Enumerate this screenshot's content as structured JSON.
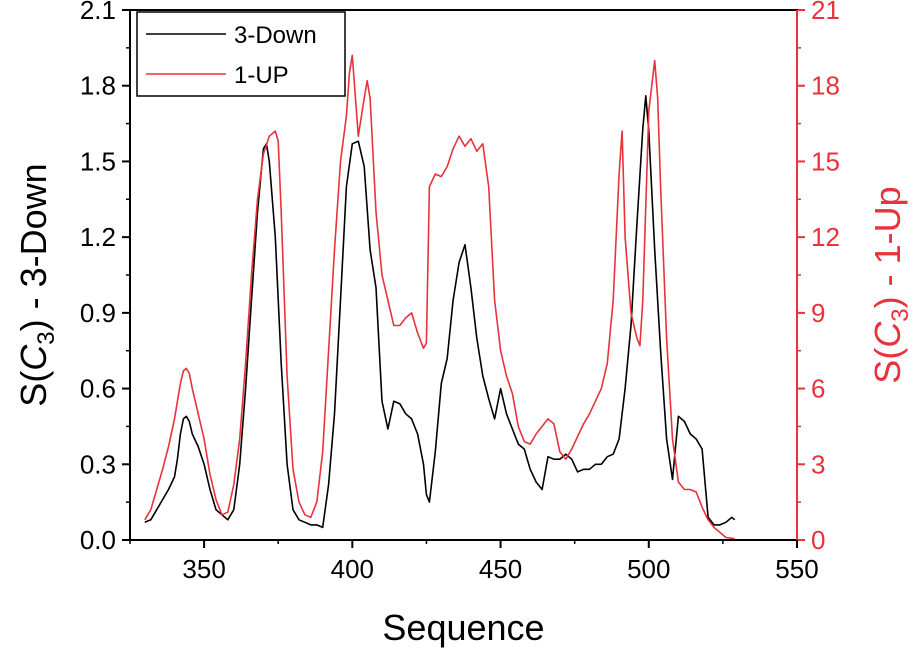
{
  "chart_data": {
    "type": "line",
    "xlabel": "Sequence",
    "ylabel_left_parts": [
      "S(",
      "C",
      "3",
      ") - 3-Down"
    ],
    "ylabel_right_parts": [
      "S(",
      "C",
      "3",
      ") - 1-Up"
    ],
    "xlim": [
      325,
      550
    ],
    "ylim_left": [
      0,
      2.1
    ],
    "ylim_right": [
      0,
      21
    ],
    "xticks": [
      350,
      400,
      450,
      500,
      550
    ],
    "yticks_left": [
      "0.0",
      "0.3",
      "0.6",
      "0.9",
      "1.2",
      "1.5",
      "1.8",
      "2.1"
    ],
    "yticks_right": [
      "0",
      "3",
      "6",
      "9",
      "12",
      "15",
      "18",
      "21"
    ],
    "legend_placement": "top-left",
    "colors": {
      "down": "#000000",
      "up": "#e8323c",
      "axis": "#000000",
      "right_axis": "#e8323c"
    },
    "series": [
      {
        "name": "3-Down",
        "axis": "left",
        "color": "#000000",
        "x": [
          330,
          332,
          334,
          336,
          338,
          340,
          341,
          342,
          343,
          344,
          345,
          346,
          348,
          350,
          352,
          354,
          356,
          358,
          360,
          362,
          364,
          366,
          368,
          370,
          371,
          372,
          374,
          376,
          378,
          380,
          382,
          384,
          386,
          388,
          390,
          392,
          394,
          396,
          398,
          400,
          402,
          404,
          406,
          408,
          410,
          412,
          414,
          416,
          418,
          420,
          422,
          424,
          425,
          426,
          428,
          430,
          432,
          434,
          436,
          438,
          440,
          442,
          444,
          446,
          448,
          450,
          452,
          454,
          456,
          458,
          460,
          462,
          464,
          466,
          468,
          470,
          472,
          474,
          476,
          478,
          480,
          482,
          484,
          486,
          488,
          490,
          492,
          494,
          496,
          498,
          499,
          500,
          502,
          504,
          506,
          508,
          510,
          512,
          514,
          516,
          518,
          520,
          522,
          524,
          526,
          528,
          529
        ],
        "y": [
          0.07,
          0.08,
          0.12,
          0.16,
          0.2,
          0.25,
          0.32,
          0.42,
          0.48,
          0.49,
          0.47,
          0.42,
          0.37,
          0.3,
          0.2,
          0.12,
          0.1,
          0.08,
          0.12,
          0.3,
          0.6,
          0.95,
          1.3,
          1.55,
          1.57,
          1.5,
          1.2,
          0.7,
          0.3,
          0.12,
          0.08,
          0.07,
          0.06,
          0.06,
          0.05,
          0.22,
          0.5,
          0.95,
          1.4,
          1.57,
          1.58,
          1.48,
          1.15,
          1.0,
          0.55,
          0.44,
          0.55,
          0.54,
          0.5,
          0.48,
          0.42,
          0.3,
          0.18,
          0.15,
          0.35,
          0.62,
          0.72,
          0.95,
          1.1,
          1.17,
          1.0,
          0.8,
          0.65,
          0.56,
          0.48,
          0.6,
          0.5,
          0.44,
          0.38,
          0.36,
          0.28,
          0.23,
          0.2,
          0.33,
          0.32,
          0.32,
          0.34,
          0.32,
          0.27,
          0.28,
          0.28,
          0.3,
          0.3,
          0.33,
          0.34,
          0.4,
          0.6,
          0.85,
          1.25,
          1.63,
          1.76,
          1.62,
          1.15,
          0.75,
          0.4,
          0.24,
          0.49,
          0.47,
          0.42,
          0.4,
          0.36,
          0.09,
          0.06,
          0.06,
          0.07,
          0.09,
          0.08
        ]
      },
      {
        "name": "1-UP",
        "axis": "right",
        "color": "#e8323c",
        "x": [
          330,
          332,
          334,
          336,
          338,
          340,
          342,
          343,
          344,
          345,
          346,
          348,
          350,
          352,
          354,
          356,
          358,
          360,
          362,
          364,
          366,
          368,
          370,
          372,
          374,
          375,
          376,
          378,
          380,
          382,
          384,
          386,
          388,
          390,
          392,
          394,
          396,
          398,
          399,
          400,
          402,
          404,
          405,
          406,
          408,
          410,
          412,
          414,
          416,
          418,
          420,
          422,
          424,
          425,
          426,
          428,
          430,
          432,
          434,
          436,
          438,
          440,
          442,
          444,
          446,
          448,
          450,
          452,
          454,
          456,
          458,
          460,
          462,
          464,
          466,
          468,
          470,
          472,
          474,
          476,
          478,
          480,
          482,
          484,
          486,
          488,
          490,
          491,
          492,
          494,
          496,
          497,
          498,
          500,
          502,
          503,
          504,
          506,
          508,
          510,
          512,
          514,
          516,
          518,
          520,
          522,
          524,
          526,
          529
        ],
        "y": [
          0.8,
          1.2,
          2.0,
          2.8,
          3.7,
          4.8,
          6.2,
          6.7,
          6.8,
          6.6,
          6.0,
          5.0,
          4.0,
          2.6,
          1.6,
          1.0,
          1.1,
          2.2,
          4.0,
          7.0,
          10.5,
          13.5,
          15.3,
          16.0,
          16.2,
          15.8,
          13.0,
          6.5,
          2.8,
          1.5,
          1.0,
          0.9,
          1.5,
          3.5,
          7.5,
          11.5,
          15.0,
          16.8,
          18.5,
          19.2,
          16.0,
          17.5,
          18.2,
          17.5,
          13.0,
          10.5,
          9.5,
          8.5,
          8.5,
          8.8,
          9.0,
          8.2,
          7.6,
          7.8,
          14.0,
          14.5,
          14.4,
          14.8,
          15.5,
          16.0,
          15.6,
          15.9,
          15.4,
          15.7,
          14.0,
          9.5,
          7.5,
          6.5,
          5.8,
          4.5,
          3.9,
          3.8,
          4.2,
          4.5,
          4.8,
          4.6,
          3.5,
          3.2,
          3.6,
          4.1,
          4.6,
          5.0,
          5.5,
          6.0,
          7.0,
          9.5,
          14.5,
          16.2,
          12.0,
          9.0,
          8.0,
          7.7,
          9.5,
          17.0,
          19.0,
          17.5,
          14.0,
          8.0,
          4.0,
          2.3,
          2.0,
          2.0,
          1.9,
          1.3,
          0.8,
          0.5,
          0.3,
          0.1,
          0.05
        ]
      }
    ]
  }
}
